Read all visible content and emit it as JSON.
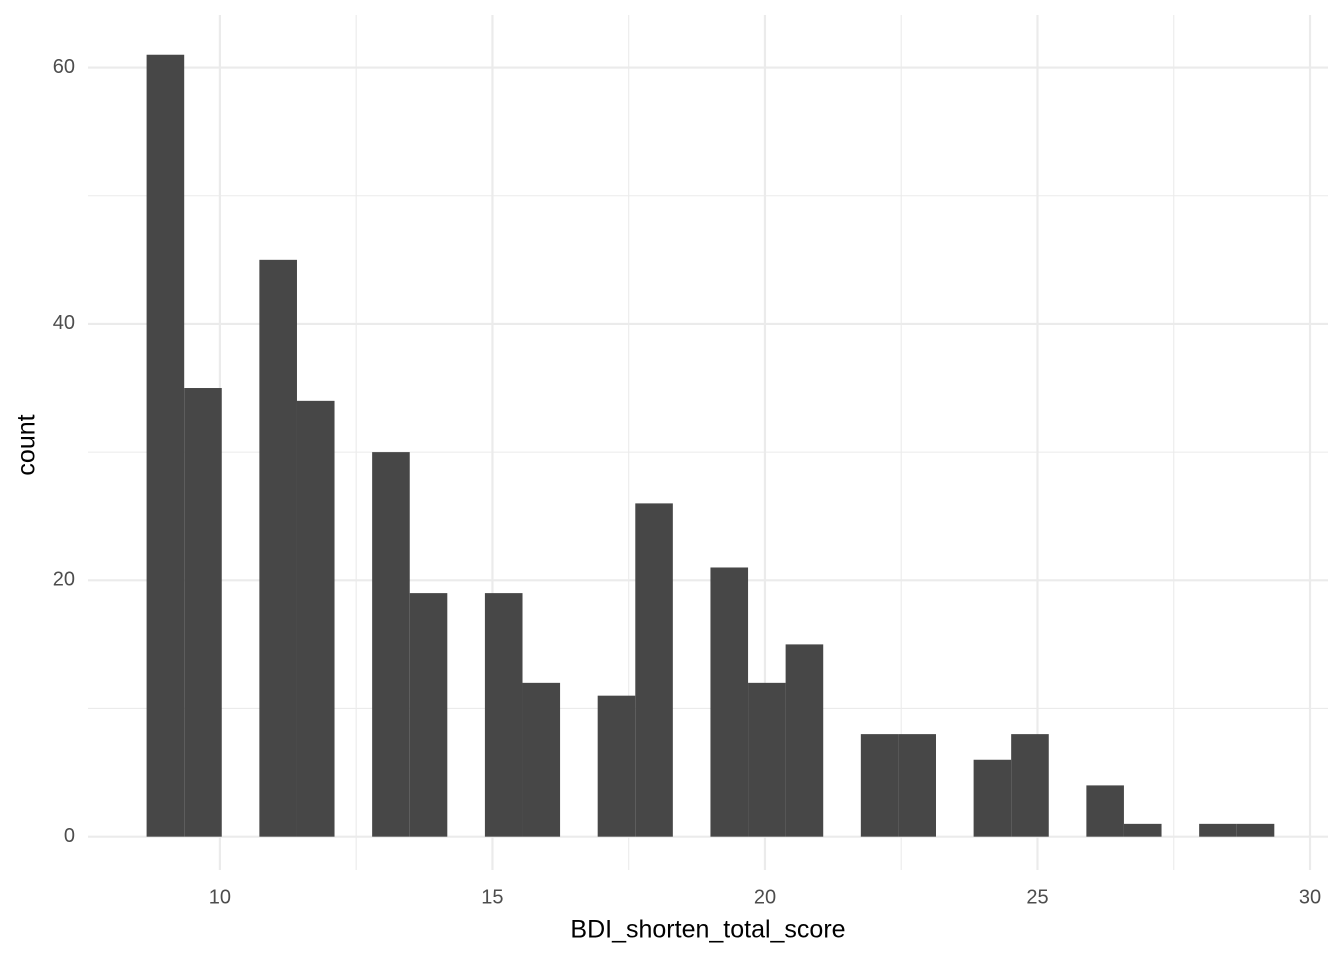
{
  "chart_data": {
    "type": "histogram",
    "x_label": "BDI_shorten_total_score",
    "y_label": "count",
    "bins": [
      8.655,
      9.345,
      10.034,
      10.724,
      11.414,
      12.103,
      12.793,
      13.483,
      14.172,
      14.862,
      15.552,
      16.241,
      16.931,
      17.621,
      18.31,
      19.0,
      19.69,
      20.379,
      21.069,
      21.759,
      22.448,
      23.138,
      23.828,
      24.517,
      25.207,
      25.897,
      26.586,
      27.276,
      27.966,
      28.655,
      29.345
    ],
    "values": [
      61,
      35,
      0,
      45,
      34,
      0,
      30,
      19,
      0,
      19,
      12,
      0,
      11,
      26,
      0,
      21,
      12,
      15,
      0,
      8,
      8,
      0,
      6,
      8,
      0,
      4,
      1,
      0,
      1,
      1
    ],
    "color": "#474747",
    "xlim": [
      7.58,
      30.33
    ],
    "ylim": [
      -2.6,
      64.1
    ],
    "xticks": [
      10,
      15,
      20,
      25,
      30
    ],
    "yticks": [
      0,
      20,
      40,
      60
    ],
    "grid": true
  }
}
